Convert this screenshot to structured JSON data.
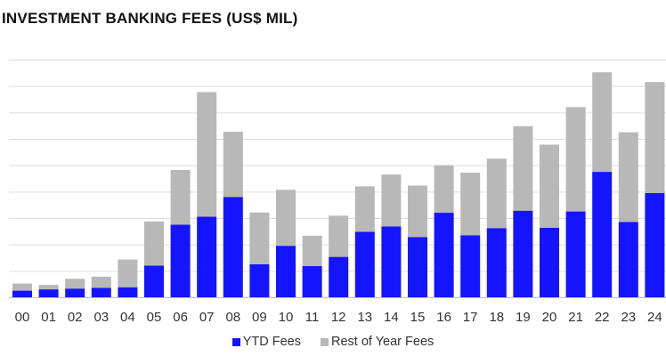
{
  "chart_data": {
    "type": "bar",
    "stacked": true,
    "title": "INVESTMENT BANKING FEES (US$ MIL)",
    "xlabel": "",
    "ylabel": "",
    "ylim": [
      0,
      9
    ],
    "grid": true,
    "legend_position": "bottom",
    "categories": [
      "00",
      "01",
      "02",
      "03",
      "04",
      "05",
      "06",
      "07",
      "08",
      "09",
      "10",
      "11",
      "12",
      "13",
      "14",
      "15",
      "16",
      "17",
      "18",
      "19",
      "20",
      "21",
      "22",
      "23",
      "24"
    ],
    "series": [
      {
        "name": "YTD Fees",
        "color": "#1414ff",
        "values": [
          0.25,
          0.3,
          0.33,
          0.36,
          0.38,
          1.2,
          2.75,
          3.05,
          3.8,
          1.25,
          1.95,
          1.18,
          1.53,
          2.48,
          2.68,
          2.28,
          3.2,
          2.35,
          2.62,
          3.28,
          2.63,
          3.25,
          4.75,
          2.85,
          3.95
        ]
      },
      {
        "name": "Rest of Year Fees",
        "color": "#b8b8b8",
        "values": [
          0.27,
          0.17,
          0.37,
          0.42,
          1.05,
          1.67,
          2.07,
          4.72,
          2.47,
          1.96,
          2.12,
          1.15,
          1.56,
          1.72,
          1.97,
          1.95,
          1.8,
          2.37,
          2.63,
          3.2,
          3.15,
          3.95,
          3.77,
          3.4,
          4.2
        ]
      }
    ]
  }
}
